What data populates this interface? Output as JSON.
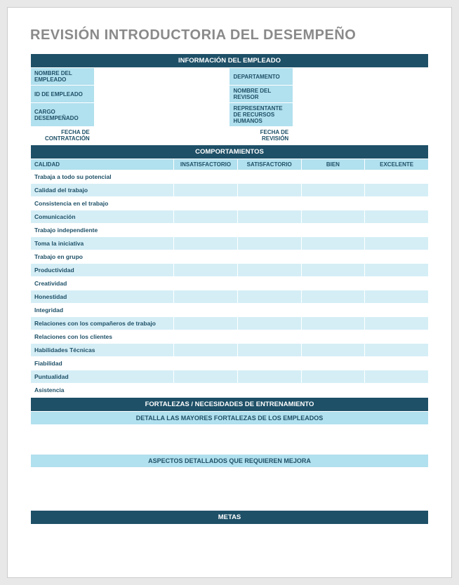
{
  "title": "REVISIÓN INTRODUCTORIA DEL DESEMPEÑO",
  "sections": {
    "employee_info": {
      "header": "INFORMACIÓN DEL EMPLEADO",
      "fields": {
        "name": "NOMBRE DEL EMPLEADO",
        "department": "DEPARTAMENTO",
        "emp_id": "ID DE EMPLEADO",
        "reviewer": "NOMBRE DEL REVISOR",
        "position": "CARGO DESEMPEÑADO",
        "hr_rep": "REPRESENTANTE DE RECURSOS HUMANOS",
        "hire_date": "FECHA DE CONTRATACIÓN",
        "review_date": "FECHA DE REVISIÓN"
      }
    },
    "behaviors": {
      "header": "COMPORTAMIENTOS",
      "columns": {
        "quality": "CALIDAD",
        "unsatisfactory": "INSATISFACTORIO",
        "satisfactory": "SATISFACTORIO",
        "good": "BIEN",
        "excellent": "EXCELENTE"
      },
      "rows": [
        "Trabaja a todo su potencial",
        "Calidad del trabajo",
        "Consistencia en el trabajo",
        "Comunicación",
        "Trabajo independiente",
        "Toma la iniciativa",
        "Trabajo en grupo",
        "Productividad",
        "Creatividad",
        "Honestidad",
        "Integridad",
        "Relaciones con los compañeros de trabajo",
        "Relaciones con los clientes",
        "Habilidades Técnicas",
        "Fiabilidad",
        "Puntualidad",
        "Asistencia"
      ]
    },
    "strengths": {
      "header": "FORTALEZAS / NECESIDADES DE ENTRENAMIENTO",
      "sub1": "DETALLA LAS MAYORES FORTALEZAS DE LOS EMPLEADOS",
      "sub2": "ASPECTOS DETALLADOS QUE REQUIEREN MEJORA"
    },
    "goals": {
      "header": "METAS"
    }
  },
  "colors": {
    "dark": "#1e5067",
    "light": "#b1e0ee",
    "lighter": "#d5eef6",
    "title_gray": "#8a8a8a"
  }
}
